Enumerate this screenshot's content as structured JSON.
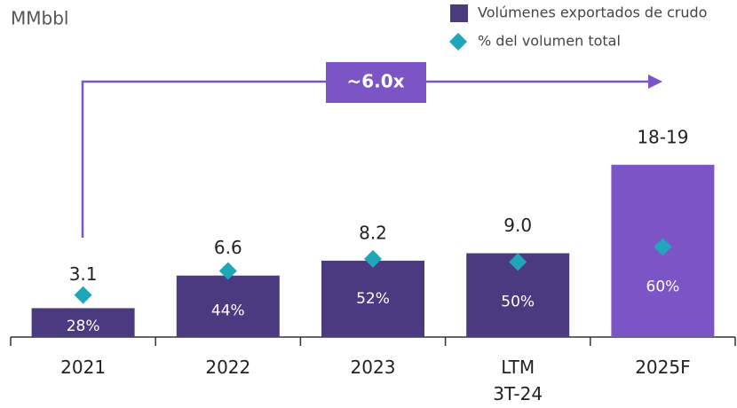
{
  "chart_data": {
    "type": "bar",
    "unit_label": "MMbbl",
    "annotation": "~6.0x",
    "categories": [
      "2021",
      "2022",
      "2023",
      "LTM\n3T-24",
      "2025F"
    ],
    "ylim": [
      0,
      20
    ],
    "y2lim": [
      0,
      124
    ],
    "series": [
      {
        "name": "Volúmenes exportados de crudo",
        "color": "#4b3a7f",
        "colors": [
          "#4b3a7f",
          "#4b3a7f",
          "#4b3a7f",
          "#4b3a7f",
          "#7b55c6"
        ],
        "values": [
          3.1,
          6.6,
          8.2,
          9.0,
          18.5
        ],
        "value_labels": [
          "3.1",
          "6.6",
          "8.2",
          "9.0",
          "18-19"
        ]
      },
      {
        "name": "% del volumen total",
        "color": "#1fa6b8",
        "type": "scatter",
        "axis": "y2",
        "values": [
          28,
          44,
          52,
          50,
          60
        ],
        "value_labels": [
          "28%",
          "44%",
          "52%",
          "50%",
          "60%"
        ]
      }
    ]
  }
}
